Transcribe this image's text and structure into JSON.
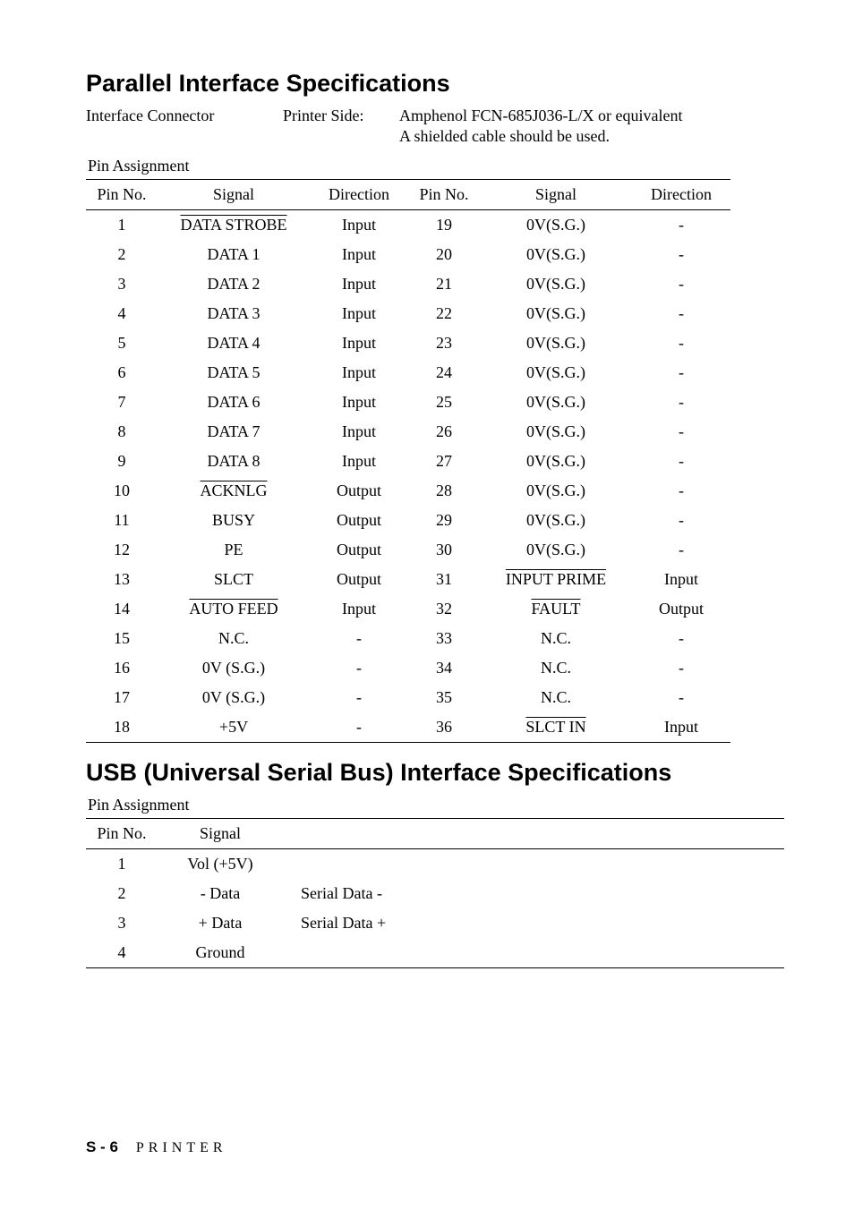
{
  "headings": {
    "parallel": "Parallel Interface Specifications",
    "usb": "USB (Universal Serial Bus) Interface Specifications"
  },
  "connector": {
    "label": "Interface Connector",
    "side": "Printer Side:",
    "value": "Amphenol FCN-685J036-L/X or equivalent",
    "note": "A shielded cable should be used."
  },
  "pin_assignment_label": "Pin Assignment",
  "parallel_table": {
    "headers": [
      "Pin No.",
      "Signal",
      "Direction",
      "Pin No.",
      "Signal",
      "Direction"
    ],
    "rows": [
      {
        "c": [
          "1",
          "DATA STROBE",
          "Input",
          "19",
          "0V(S.G.)",
          "-"
        ],
        "ol": [
          1
        ]
      },
      {
        "c": [
          "2",
          "DATA 1",
          "Input",
          "20",
          "0V(S.G.)",
          "-"
        ],
        "ol": []
      },
      {
        "c": [
          "3",
          "DATA 2",
          "Input",
          "21",
          "0V(S.G.)",
          "-"
        ],
        "ol": []
      },
      {
        "c": [
          "4",
          "DATA 3",
          "Input",
          "22",
          "0V(S.G.)",
          "-"
        ],
        "ol": []
      },
      {
        "c": [
          "5",
          "DATA 4",
          "Input",
          "23",
          "0V(S.G.)",
          "-"
        ],
        "ol": []
      },
      {
        "c": [
          "6",
          "DATA 5",
          "Input",
          "24",
          "0V(S.G.)",
          "-"
        ],
        "ol": []
      },
      {
        "c": [
          "7",
          "DATA 6",
          "Input",
          "25",
          "0V(S.G.)",
          "-"
        ],
        "ol": []
      },
      {
        "c": [
          "8",
          "DATA 7",
          "Input",
          "26",
          "0V(S.G.)",
          "-"
        ],
        "ol": []
      },
      {
        "c": [
          "9",
          "DATA 8",
          "Input",
          "27",
          "0V(S.G.)",
          "-"
        ],
        "ol": []
      },
      {
        "c": [
          "10",
          "ACKNLG",
          "Output",
          "28",
          "0V(S.G.)",
          "-"
        ],
        "ol": [
          1
        ]
      },
      {
        "c": [
          "11",
          "BUSY",
          "Output",
          "29",
          "0V(S.G.)",
          "-"
        ],
        "ol": []
      },
      {
        "c": [
          "12",
          "PE",
          "Output",
          "30",
          "0V(S.G.)",
          "-"
        ],
        "ol": []
      },
      {
        "c": [
          "13",
          "SLCT",
          "Output",
          "31",
          "INPUT PRIME",
          "Input"
        ],
        "ol": [
          4
        ]
      },
      {
        "c": [
          "14",
          "AUTO FEED",
          "Input",
          "32",
          "FAULT",
          "Output"
        ],
        "ol": [
          1,
          4
        ]
      },
      {
        "c": [
          "15",
          "N.C.",
          "-",
          "33",
          "N.C.",
          "-"
        ],
        "ol": []
      },
      {
        "c": [
          "16",
          "0V (S.G.)",
          "-",
          "34",
          "N.C.",
          "-"
        ],
        "ol": []
      },
      {
        "c": [
          "17",
          "0V (S.G.)",
          "-",
          "35",
          "N.C.",
          "-"
        ],
        "ol": []
      },
      {
        "c": [
          "18",
          "+5V",
          "-",
          "36",
          "SLCT IN",
          "Input"
        ],
        "ol": [
          4
        ]
      }
    ],
    "col_widths": [
      "80px",
      "170px",
      "110px",
      "80px",
      "170px",
      "110px"
    ]
  },
  "usb_table": {
    "headers": [
      "Pin No.",
      "Signal",
      ""
    ],
    "rows": [
      [
        "1",
        "Vol (+5V)",
        ""
      ],
      [
        "2",
        "- Data",
        "Serial Data -"
      ],
      [
        "3",
        "+ Data",
        "Serial Data +"
      ],
      [
        "4",
        "Ground",
        ""
      ]
    ]
  },
  "footer": {
    "page": "S - 6",
    "section": "PRINTER"
  }
}
